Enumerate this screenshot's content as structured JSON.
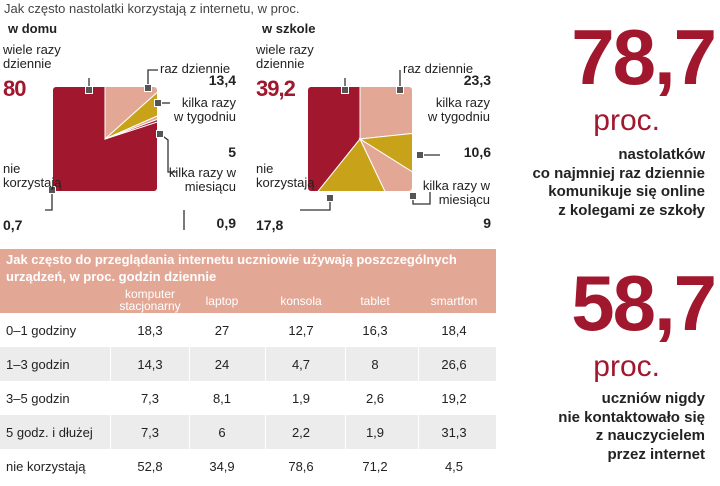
{
  "title": "Jak często nastolatki korzystają z internetu, w proc.",
  "colors": {
    "crimson": "#a0172e",
    "salmon": "#e3a796",
    "olive": "#c8a219"
  },
  "chart_data": [
    {
      "type": "pie",
      "title": "w domu",
      "slices": [
        {
          "label": "wiele razy dziennie",
          "value": 80,
          "color": "#a0172e"
        },
        {
          "label": "raz dziennie",
          "value": 13.4,
          "color": "#e3a796"
        },
        {
          "label": "kilka razy w tygodniu",
          "value": 5,
          "color": "#c8a219"
        },
        {
          "label": "kilka razy w miesiącu",
          "value": 0.9,
          "color": "#e3a796"
        },
        {
          "label": "nie korzystają",
          "value": 0.7,
          "color": "#a0172e"
        }
      ]
    },
    {
      "type": "pie",
      "title": "w szkole",
      "slices": [
        {
          "label": "wiele razy dziennie",
          "value": 39.2,
          "color": "#a0172e"
        },
        {
          "label": "raz dziennie",
          "value": 23.3,
          "color": "#e3a796"
        },
        {
          "label": "kilka razy w tygodniu",
          "value": 10.6,
          "color": "#c8a219"
        },
        {
          "label": "kilka razy w miesiącu",
          "value": 9,
          "color": "#e3a796"
        },
        {
          "label": "nie korzystają",
          "value": 17.8,
          "color": "#c8a219"
        }
      ]
    },
    {
      "type": "table",
      "title": "Jak często do przeglądania internetu uczniowie używają poszczególnych urządzeń, w proc. godzin dziennie",
      "columns": [
        "komputer stacjonarny",
        "laptop",
        "konsola",
        "tablet",
        "smartfon"
      ],
      "rows": [
        {
          "label": "0–1 godziny",
          "values": [
            "18,3",
            "27",
            "12,7",
            "16,3",
            "18,4"
          ]
        },
        {
          "label": "1–3 godzin",
          "values": [
            "14,3",
            "24",
            "4,7",
            "8",
            "26,6"
          ]
        },
        {
          "label": "3–5 godzin",
          "values": [
            "7,3",
            "8,1",
            "1,9",
            "2,6",
            "19,2"
          ]
        },
        {
          "label": "5 godz. i dłużej",
          "values": [
            "7,3",
            "6",
            "2,2",
            "1,9",
            "31,3"
          ]
        },
        {
          "label": "nie korzystają",
          "values": [
            "52,8",
            "34,9",
            "78,6",
            "71,2",
            "4,5"
          ]
        }
      ]
    }
  ],
  "labels_home": {
    "many": "wiele razy dziennie",
    "many_v": "80",
    "once": "raz dziennie",
    "once_v": "13,4",
    "week": "kilka razy w tygodniu",
    "week_v": "5",
    "month": "kilka razy w miesiącu",
    "month_v": "0,9",
    "none": "nie korzystają",
    "none_v": "0,7"
  },
  "labels_school": {
    "many": "wiele razy dziennie",
    "many_v": "39,2",
    "once": "raz dziennie",
    "once_v": "23,3",
    "week": "kilka razy w tygodniu",
    "week_v": "10,6",
    "month": "kilka razy w miesiącu",
    "month_v": "9",
    "none": "nie korzystają",
    "none_v": "17,8"
  },
  "stats": [
    {
      "value": "78,7",
      "unit": "proc.",
      "lines": [
        "nastolatków",
        "co najmniej raz dziennie",
        "komunikuje się online",
        "z kolegami ze szkoły"
      ]
    },
    {
      "value": "58,7",
      "unit": "proc.",
      "lines": [
        "uczniów nigdy",
        "nie kontaktowało się",
        "z nauczycielem",
        "przez internet"
      ]
    }
  ]
}
